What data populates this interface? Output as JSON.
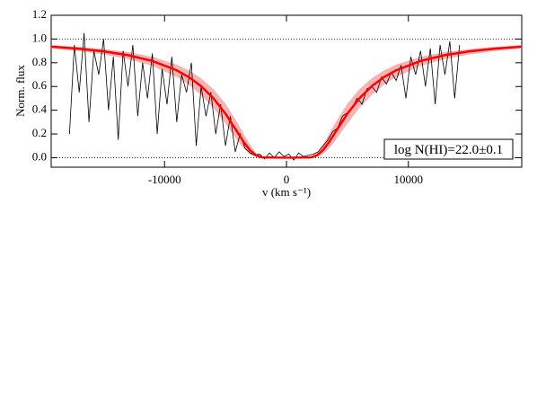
{
  "chart_data": {
    "type": "line",
    "ylabel": "Norm. flux",
    "xlabel": "v (km s⁻¹)",
    "annotation": "log N(HI)=22.0±0.1",
    "xlim": [
      -19300,
      19300
    ],
    "ylim": [
      -0.08,
      1.2
    ],
    "xticks": [
      -10000,
      0,
      10000
    ],
    "yticks": [
      {
        "value": 0,
        "label": "0.0"
      },
      0.2,
      0.4,
      0.6,
      0.8,
      {
        "value": 1,
        "label": "1.0"
      },
      1.2
    ],
    "reference_lines": [
      1,
      0
    ],
    "band": {
      "color": "#f4a0a0",
      "x": [
        -19300,
        -17000,
        -15000,
        -13000,
        -11000,
        -9000,
        -8000,
        -7000,
        -6000,
        -5000,
        -4000,
        -3500,
        -3000,
        -2500,
        -2000,
        0,
        2000,
        2500,
        3000,
        3500,
        4000,
        5000,
        6000,
        7000,
        8000,
        9000,
        11000,
        13000,
        15000,
        17000,
        19300
      ],
      "upper": [
        0.948,
        0.934,
        0.916,
        0.89,
        0.85,
        0.784,
        0.735,
        0.669,
        0.579,
        0.455,
        0.292,
        0.2,
        0.112,
        0.043,
        0.007,
        0,
        0.007,
        0.043,
        0.112,
        0.2,
        0.292,
        0.455,
        0.579,
        0.669,
        0.735,
        0.784,
        0.85,
        0.89,
        0.916,
        0.934,
        0.948
      ],
      "lower": [
        0.92,
        0.898,
        0.87,
        0.831,
        0.773,
        0.68,
        0.614,
        0.529,
        0.42,
        0.287,
        0.142,
        0.078,
        0.031,
        0.007,
        0,
        0,
        0,
        0.007,
        0.031,
        0.078,
        0.142,
        0.287,
        0.42,
        0.529,
        0.614,
        0.68,
        0.773,
        0.831,
        0.87,
        0.898,
        0.92
      ]
    },
    "series": [
      {
        "color": "#000000",
        "x": [
          -17800,
          -17400,
          -17000,
          -16600,
          -16200,
          -15800,
          -15400,
          -15000,
          -14600,
          -14200,
          -13800,
          -13400,
          -13000,
          -12600,
          -12200,
          -11800,
          -11400,
          -11000,
          -10600,
          -10200,
          -9800,
          -9400,
          -9000,
          -8600,
          -8200,
          -7800,
          -7400,
          -7000,
          -6600,
          -6200,
          -5800,
          -5400,
          -5000,
          -4600,
          -4200,
          -3800,
          -3400,
          -3000,
          -2600,
          -2200,
          -1800,
          -1400,
          -1000,
          -600,
          -200,
          200,
          600,
          1000,
          1400,
          1800,
          2200,
          2600,
          3000,
          3400,
          3800,
          4200,
          4600,
          5000,
          5400,
          5800,
          6200,
          6600,
          7000,
          7400,
          7800,
          8200,
          8600,
          9000,
          9400,
          9800,
          10200,
          10600,
          11000,
          11400,
          11800,
          12200,
          12600,
          13000,
          13400,
          13800,
          14200
        ],
        "values": [
          0.2,
          0.95,
          0.55,
          1.05,
          0.3,
          0.9,
          0.7,
          1.0,
          0.4,
          0.85,
          0.15,
          0.9,
          0.6,
          0.95,
          0.35,
          0.8,
          0.5,
          0.88,
          0.2,
          0.75,
          0.45,
          0.85,
          0.3,
          0.7,
          0.55,
          0.8,
          0.1,
          0.6,
          0.35,
          0.55,
          0.2,
          0.45,
          0.1,
          0.35,
          0.05,
          0.2,
          0.08,
          0.04,
          0.02,
          0.03,
          -0.01,
          0.04,
          0,
          0.05,
          0.01,
          0.03,
          -0.02,
          0.04,
          0.01,
          0.02,
          0.03,
          0.05,
          0.1,
          0.15,
          0.22,
          0.25,
          0.35,
          0.38,
          0.42,
          0.5,
          0.45,
          0.58,
          0.6,
          0.55,
          0.68,
          0.62,
          0.72,
          0.65,
          0.78,
          0.5,
          0.85,
          0.7,
          0.9,
          0.6,
          0.92,
          0.45,
          0.95,
          0.7,
          0.98,
          0.5,
          0.95
        ]
      },
      {
        "color": "#ff0000",
        "x": [
          -19300,
          -17000,
          -15000,
          -13000,
          -11000,
          -9000,
          -8000,
          -7000,
          -6000,
          -5000,
          -4000,
          -3500,
          -3000,
          -2500,
          -2000,
          0,
          2000,
          2500,
          3000,
          3500,
          4000,
          5000,
          6000,
          7000,
          8000,
          9000,
          11000,
          13000,
          15000,
          17000,
          19300
        ],
        "values": [
          0.936,
          0.918,
          0.896,
          0.864,
          0.815,
          0.736,
          0.679,
          0.603,
          0.502,
          0.371,
          0.212,
          0.132,
          0.064,
          0.019,
          0.002,
          0,
          0.002,
          0.019,
          0.064,
          0.132,
          0.212,
          0.371,
          0.502,
          0.603,
          0.679,
          0.736,
          0.815,
          0.864,
          0.896,
          0.918,
          0.936
        ]
      }
    ]
  }
}
